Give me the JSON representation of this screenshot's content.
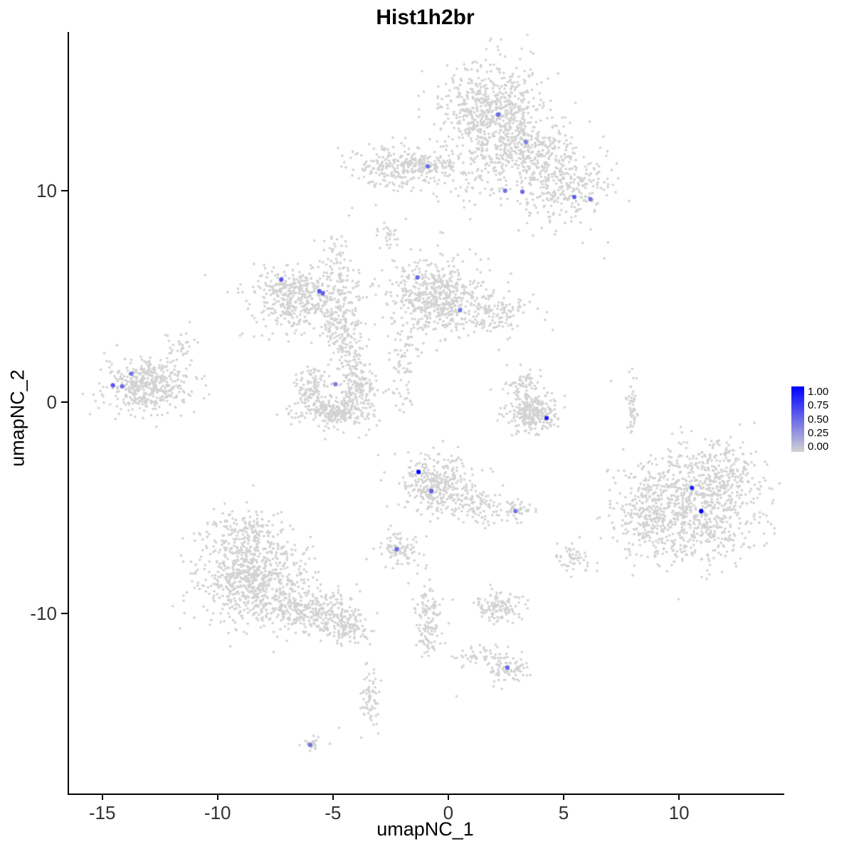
{
  "title": "Hist1h2br",
  "axes": {
    "x_label": "umapNC_1",
    "y_label": "umapNC_2",
    "x_ticks": [
      -15,
      -10,
      -5,
      0,
      5,
      10
    ],
    "y_ticks": [
      -10,
      0,
      10
    ]
  },
  "legend": {
    "labels": [
      "1.00",
      "0.75",
      "0.50",
      "0.25",
      "0.00"
    ],
    "color_high": "#0000FF",
    "color_low": "#D3D3D3"
  },
  "chart_data": {
    "type": "scatter",
    "title": "Hist1h2br",
    "xlabel": "umapNC_1",
    "ylabel": "umapNC_2",
    "xlim": [
      -16.5,
      14.5
    ],
    "ylim": [
      -18.5,
      17.5
    ],
    "grid": false,
    "legend_position": "right",
    "point_color_scale": {
      "low": "#D3D3D3",
      "high": "#0000FF",
      "domain": [
        0,
        1
      ]
    },
    "background_color": "#D2D2D2",
    "background_clusters": [
      {
        "name": "top-main-head",
        "cx": 1.8,
        "cy": 13.7,
        "sx": 1.1,
        "sy": 1.2,
        "n": 700
      },
      {
        "name": "top-main-arm",
        "cx": 3.5,
        "cy": 11.9,
        "sx": 0.9,
        "sy": 0.8,
        "n": 250
      },
      {
        "name": "top-right-lobe",
        "cx": 5.0,
        "cy": 10.3,
        "sx": 1.1,
        "sy": 0.9,
        "n": 300
      },
      {
        "name": "top-bridge-sparse",
        "cx": 1.0,
        "cy": 10.7,
        "sx": 1.0,
        "sy": 0.7,
        "n": 80
      },
      {
        "name": "upper-left-band",
        "cx": -2.3,
        "cy": 11.1,
        "sx": 1.0,
        "sy": 0.5,
        "n": 250
      },
      {
        "name": "upper-band-tail",
        "cx": -0.6,
        "cy": 11.2,
        "sx": 0.6,
        "sy": 0.25,
        "n": 60
      },
      {
        "name": "small-upper-bits",
        "cx": -2.7,
        "cy": 8.0,
        "sx": 0.3,
        "sy": 0.35,
        "n": 25
      },
      {
        "name": "midleft-ring",
        "cx": -6.6,
        "cy": 4.9,
        "sx": 1.0,
        "sy": 0.75,
        "n": 450
      },
      {
        "name": "midleft-right-lobe",
        "cx": -4.6,
        "cy": 3.4,
        "sx": 0.5,
        "sy": 1.3,
        "n": 180
      },
      {
        "name": "midleft-up-strand",
        "cx": -4.9,
        "cy": 6.5,
        "sx": 0.3,
        "sy": 0.8,
        "n": 60
      },
      {
        "name": "midleft-down-strand",
        "cx": -4.3,
        "cy": 2.3,
        "sx": 0.25,
        "sy": 1.0,
        "n": 70
      },
      {
        "name": "center-mid-main",
        "cx": -0.6,
        "cy": 5.0,
        "sx": 1.0,
        "sy": 0.9,
        "n": 550
      },
      {
        "name": "center-mid-tail",
        "cx": 1.8,
        "cy": 4.2,
        "sx": 0.9,
        "sy": 0.5,
        "n": 150
      },
      {
        "name": "center-down-strand",
        "cx": -2.0,
        "cy": 1.6,
        "sx": 0.3,
        "sy": 1.0,
        "n": 70
      },
      {
        "name": "far-left-main",
        "cx": -13.2,
        "cy": 0.8,
        "sx": 0.85,
        "sy": 0.6,
        "n": 380
      },
      {
        "name": "far-left-halo",
        "cx": -13.0,
        "cy": 0.7,
        "sx": 1.3,
        "sy": 0.9,
        "n": 80
      },
      {
        "name": "far-left-bits",
        "cx": -11.8,
        "cy": 2.7,
        "sx": 0.4,
        "sy": 0.3,
        "n": 30
      },
      {
        "name": "crescent-left",
        "cx": -5.9,
        "cy": 0.6,
        "sx": 0.35,
        "sy": 0.5,
        "n": 120
      },
      {
        "name": "crescent-right",
        "cx": -3.9,
        "cy": 0.7,
        "sx": 0.35,
        "sy": 0.5,
        "n": 120
      },
      {
        "name": "crescent-bottom",
        "cx": -4.9,
        "cy": -0.5,
        "sx": 0.8,
        "sy": 0.35,
        "n": 260
      },
      {
        "name": "right-center-main",
        "cx": 3.6,
        "cy": -0.5,
        "sx": 0.6,
        "sy": 0.5,
        "n": 280
      },
      {
        "name": "right-center-top",
        "cx": 3.2,
        "cy": 0.9,
        "sx": 0.35,
        "sy": 0.4,
        "n": 60
      },
      {
        "name": "thin-strand-right",
        "cx": 7.9,
        "cy": -0.2,
        "sx": 0.12,
        "sy": 0.65,
        "n": 50
      },
      {
        "name": "big-right-main",
        "cx": 10.4,
        "cy": -5.0,
        "sx": 1.5,
        "sy": 1.3,
        "n": 900
      },
      {
        "name": "big-right-arm",
        "cx": 11.7,
        "cy": -3.2,
        "sx": 0.8,
        "sy": 0.7,
        "n": 150
      },
      {
        "name": "big-right-left-edge",
        "cx": 8.5,
        "cy": -5.5,
        "sx": 0.5,
        "sy": 0.9,
        "n": 120
      },
      {
        "name": "center-lower-main",
        "cx": -0.5,
        "cy": -3.9,
        "sx": 0.8,
        "sy": 0.7,
        "n": 350
      },
      {
        "name": "center-lower-tail",
        "cx": 1.3,
        "cy": -5.0,
        "sx": 0.6,
        "sy": 0.4,
        "n": 90
      },
      {
        "name": "small-lower-left",
        "cx": -2.2,
        "cy": -6.9,
        "sx": 0.45,
        "sy": 0.4,
        "n": 90
      },
      {
        "name": "small-mid-dot-group",
        "cx": 2.9,
        "cy": -5.1,
        "sx": 0.3,
        "sy": 0.25,
        "n": 40
      },
      {
        "name": "bottom-left-main",
        "cx": -8.6,
        "cy": -8.2,
        "sx": 1.2,
        "sy": 1.1,
        "n": 800
      },
      {
        "name": "bottom-left-arm",
        "cx": -6.0,
        "cy": -9.9,
        "sx": 1.0,
        "sy": 0.55,
        "n": 300
      },
      {
        "name": "bottom-left-tail",
        "cx": -4.4,
        "cy": -10.6,
        "sx": 0.5,
        "sy": 0.4,
        "n": 120
      },
      {
        "name": "bottom-left-top",
        "cx": -8.9,
        "cy": -6.0,
        "sx": 0.8,
        "sy": 0.5,
        "n": 100
      },
      {
        "name": "bottom-strand",
        "cx": -0.9,
        "cy": -10.3,
        "sx": 0.3,
        "sy": 1.0,
        "n": 130
      },
      {
        "name": "bottom-small",
        "cx": 2.1,
        "cy": -9.7,
        "sx": 0.55,
        "sy": 0.35,
        "n": 120
      },
      {
        "name": "bottom-right-bits",
        "cx": 5.2,
        "cy": -7.4,
        "sx": 0.45,
        "sy": 0.4,
        "n": 50
      },
      {
        "name": "lowest-cluster",
        "cx": 2.5,
        "cy": -12.6,
        "sx": 0.45,
        "sy": 0.3,
        "n": 90
      },
      {
        "name": "lowest-bridge",
        "cx": 1.3,
        "cy": -12.0,
        "sx": 0.6,
        "sy": 0.25,
        "n": 50
      },
      {
        "name": "lowest-strand",
        "cx": -3.5,
        "cy": -14.2,
        "sx": 0.2,
        "sy": 0.7,
        "n": 70
      },
      {
        "name": "lowest-small",
        "cx": -5.9,
        "cy": -16.2,
        "sx": 0.3,
        "sy": 0.15,
        "n": 25
      }
    ],
    "stray_points": [
      [
        6.7,
        6.8
      ],
      [
        -10.6,
        6.0
      ],
      [
        -0.3,
        8.0
      ],
      [
        -4.8,
        -15.4
      ],
      [
        6.4,
        -7.6
      ],
      [
        7.0,
        1.0
      ],
      [
        -3.1,
        -2.5
      ],
      [
        0.3,
        -13.9
      ]
    ],
    "expressing_cells": [
      {
        "x": 2.1,
        "y": 13.6,
        "value": 0.5
      },
      {
        "x": 3.3,
        "y": 12.3,
        "value": 0.4
      },
      {
        "x": -0.95,
        "y": 11.15,
        "value": 0.5
      },
      {
        "x": 2.4,
        "y": 10.0,
        "value": 0.45
      },
      {
        "x": 3.15,
        "y": 9.95,
        "value": 0.5
      },
      {
        "x": 5.4,
        "y": 9.7,
        "value": 0.55
      },
      {
        "x": 6.1,
        "y": 9.6,
        "value": 0.45
      },
      {
        "x": -7.3,
        "y": 5.8,
        "value": 0.6
      },
      {
        "x": -5.65,
        "y": 5.25,
        "value": 0.6
      },
      {
        "x": -5.5,
        "y": 5.15,
        "value": 0.55
      },
      {
        "x": -1.4,
        "y": 5.9,
        "value": 0.5
      },
      {
        "x": 0.45,
        "y": 4.35,
        "value": 0.45
      },
      {
        "x": -13.8,
        "y": 1.35,
        "value": 0.45
      },
      {
        "x": -14.6,
        "y": 0.8,
        "value": 0.6
      },
      {
        "x": -14.2,
        "y": 0.75,
        "value": 0.5
      },
      {
        "x": -4.95,
        "y": 0.85,
        "value": 0.4
      },
      {
        "x": 4.2,
        "y": -0.75,
        "value": 0.85
      },
      {
        "x": -1.35,
        "y": -3.3,
        "value": 1.0
      },
      {
        "x": -0.8,
        "y": -4.2,
        "value": 0.55
      },
      {
        "x": 2.85,
        "y": -5.15,
        "value": 0.45
      },
      {
        "x": 10.5,
        "y": -4.05,
        "value": 0.85
      },
      {
        "x": 10.9,
        "y": -5.15,
        "value": 1.0
      },
      {
        "x": -2.3,
        "y": -6.95,
        "value": 0.5
      },
      {
        "x": 2.5,
        "y": -12.55,
        "value": 0.5
      },
      {
        "x": -6.05,
        "y": -16.2,
        "value": 0.45
      }
    ]
  }
}
